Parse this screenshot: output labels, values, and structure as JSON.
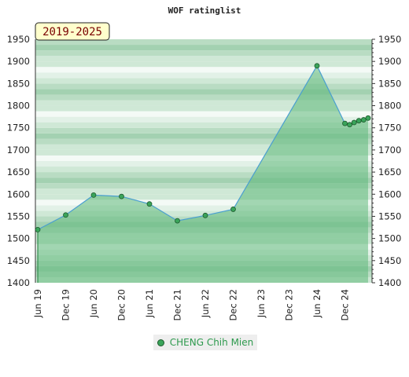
{
  "chart_data": {
    "type": "area",
    "title": "WOF ratinglist",
    "period_label": "2019-2025",
    "ylim": [
      1400,
      1950
    ],
    "y_ticks": [
      1400,
      1450,
      1500,
      1550,
      1600,
      1650,
      1700,
      1750,
      1800,
      1850,
      1900,
      1950
    ],
    "x_ticks": [
      "Jun 19",
      "Dec 19",
      "Jun 20",
      "Dec 20",
      "Jun 21",
      "Dec 21",
      "Jun 22",
      "Dec 22",
      "Jun 23",
      "Dec 23",
      "Jun 24",
      "Dec 24"
    ],
    "series": [
      {
        "name": "CHENG Chih Mien",
        "points": [
          {
            "t": 0.0,
            "y": 1520
          },
          {
            "t": 1.0,
            "y": 1553
          },
          {
            "t": 2.0,
            "y": 1598
          },
          {
            "t": 3.0,
            "y": 1595
          },
          {
            "t": 4.0,
            "y": 1578
          },
          {
            "t": 5.0,
            "y": 1540
          },
          {
            "t": 6.0,
            "y": 1552
          },
          {
            "t": 7.0,
            "y": 1566
          },
          {
            "t": 10.0,
            "y": 1890
          },
          {
            "t": 11.0,
            "y": 1760
          },
          {
            "t": 11.17,
            "y": 1757
          },
          {
            "t": 11.33,
            "y": 1762
          },
          {
            "t": 11.5,
            "y": 1766
          },
          {
            "t": 11.67,
            "y": 1768
          },
          {
            "t": 11.83,
            "y": 1772
          }
        ]
      }
    ],
    "grid": true,
    "legend_position": "bottom"
  }
}
